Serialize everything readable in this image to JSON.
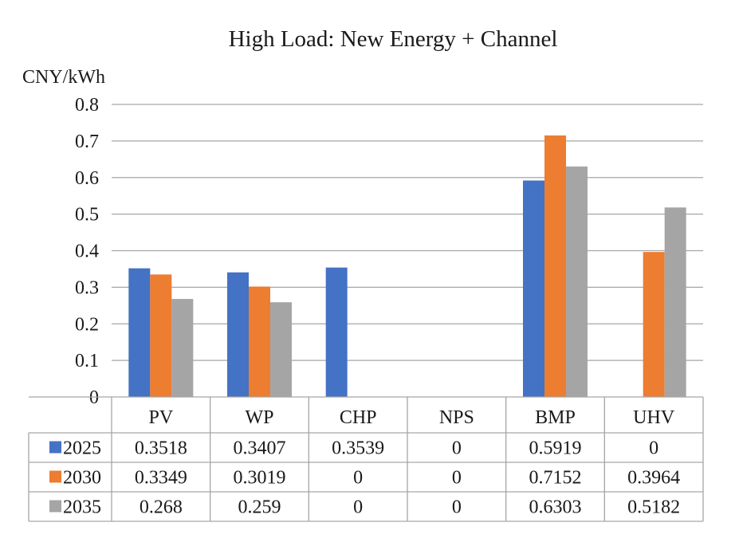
{
  "chart_data": {
    "type": "bar",
    "title": "High Load: New Energy + Channel",
    "ylabel": "CNY/kWh",
    "xlabel": "",
    "ylim": [
      0,
      0.8
    ],
    "yticks": [
      "0",
      "0.1",
      "0.2",
      "0.3",
      "0.4",
      "0.5",
      "0.6",
      "0.7",
      "0.8"
    ],
    "ytick_values": [
      0,
      0.1,
      0.2,
      0.3,
      0.4,
      0.5,
      0.6,
      0.7,
      0.8
    ],
    "grid": true,
    "legend": "data-table",
    "categories": [
      "PV",
      "WP",
      "CHP",
      "NPS",
      "BMP",
      "UHV"
    ],
    "series": [
      {
        "name": "2025",
        "color": "#4472c4",
        "values": [
          0.3518,
          0.3407,
          0.3539,
          0,
          0.5919,
          0
        ],
        "labels": [
          "0.3518",
          "0.3407",
          "0.3539",
          "0",
          "0.5919",
          "0"
        ]
      },
      {
        "name": "2030",
        "color": "#ed7d31",
        "values": [
          0.3349,
          0.3019,
          0,
          0,
          0.7152,
          0.3964
        ],
        "labels": [
          "0.3349",
          "0.3019",
          "0",
          "0",
          "0.7152",
          "0.3964"
        ]
      },
      {
        "name": "2035",
        "color": "#a5a5a5",
        "values": [
          0.268,
          0.259,
          0,
          0,
          0.6303,
          0.5182
        ],
        "labels": [
          "0.268",
          "0.259",
          "0",
          "0",
          "0.6303",
          "0.5182"
        ]
      }
    ]
  }
}
